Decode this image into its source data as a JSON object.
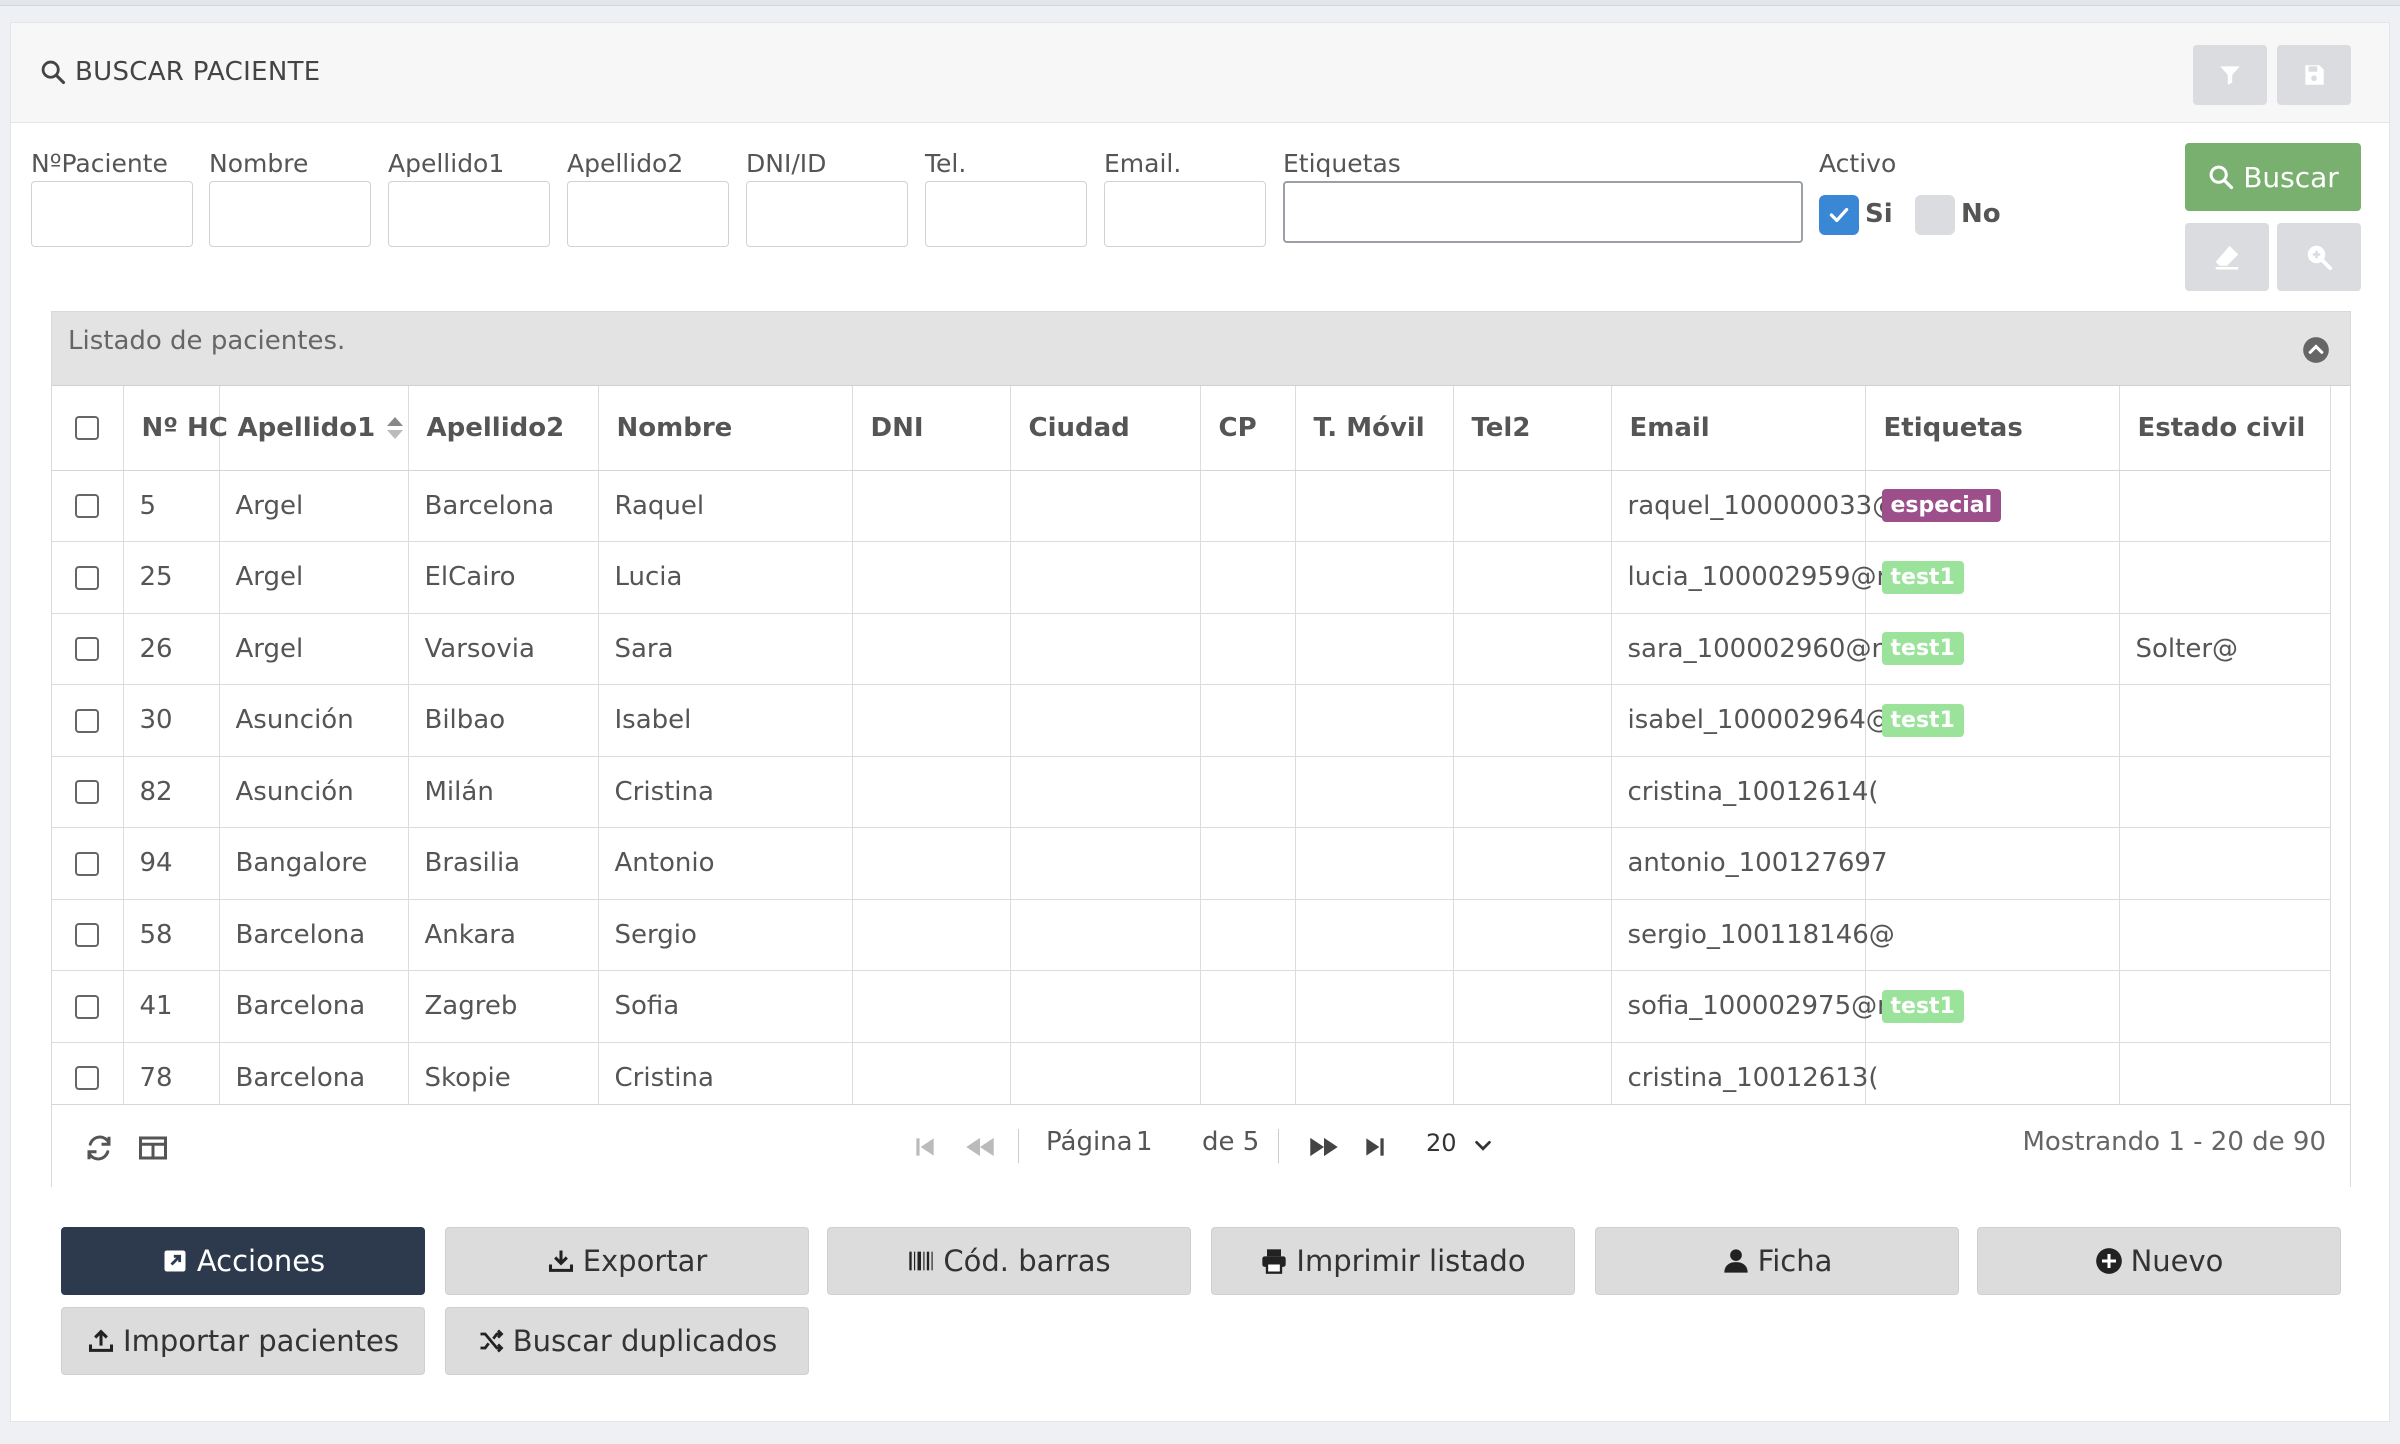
{
  "search_panel": {
    "title": "BUSCAR PACIENTE"
  },
  "filters": {
    "npaciente_label": "NºPaciente",
    "nombre_label": "Nombre",
    "apellido1_label": "Apellido1",
    "apellido2_label": "Apellido2",
    "dni_label": "DNI/ID",
    "tel_label": "Tel.",
    "email_label": "Email.",
    "etiquetas_label": "Etiquetas",
    "activo_label": "Activo",
    "si_label": "Si",
    "no_label": "No",
    "buscar_label": "Buscar"
  },
  "colors": {
    "accent_green": "#7ab06f",
    "checkbox_blue": "#3a87d6",
    "tag_especial": "#9c4f8a",
    "tag_test1": "#9be39a",
    "dark_button": "#2d3a4d"
  },
  "grid": {
    "caption": "Listado de pacientes.",
    "columns": [
      "Nº HC",
      "Apellido1",
      "Apellido2",
      "Nombre",
      "DNI",
      "Ciudad",
      "CP",
      "T. Móvil",
      "Tel2",
      "Email",
      "Etiquetas",
      "Estado civil"
    ],
    "rows": [
      {
        "hc": "5",
        "ap1": "Argel",
        "ap2": "Barcelona",
        "nombre": "Raquel",
        "email": "raquel_100000033@",
        "tag": "especial",
        "civil": ""
      },
      {
        "hc": "25",
        "ap1": "Argel",
        "ap2": "ElCairo",
        "nombre": "Lucia",
        "email": "lucia_100002959@n",
        "tag": "test1",
        "civil": ""
      },
      {
        "hc": "26",
        "ap1": "Argel",
        "ap2": "Varsovia",
        "nombre": "Sara",
        "email": "sara_100002960@n",
        "tag": "test1",
        "civil": "Solter@"
      },
      {
        "hc": "30",
        "ap1": "Asunción",
        "ap2": "Bilbao",
        "nombre": "Isabel",
        "email": "isabel_100002964@",
        "tag": "test1",
        "civil": ""
      },
      {
        "hc": "82",
        "ap1": "Asunción",
        "ap2": "Milán",
        "nombre": "Cristina",
        "email": "cristina_10012614(",
        "tag": "",
        "civil": ""
      },
      {
        "hc": "94",
        "ap1": "Bangalore",
        "ap2": "Brasilia",
        "nombre": "Antonio",
        "email": "antonio_100127697",
        "tag": "",
        "civil": ""
      },
      {
        "hc": "58",
        "ap1": "Barcelona",
        "ap2": "Ankara",
        "nombre": "Sergio",
        "email": "sergio_100118146@",
        "tag": "",
        "civil": ""
      },
      {
        "hc": "41",
        "ap1": "Barcelona",
        "ap2": "Zagreb",
        "nombre": "Sofia",
        "email": "sofia_100002975@n",
        "tag": "test1",
        "civil": ""
      },
      {
        "hc": "78",
        "ap1": "Barcelona",
        "ap2": "Skopie",
        "nombre": "Cristina",
        "email": "cristina_10012613(",
        "tag": "",
        "civil": ""
      }
    ]
  },
  "pager": {
    "pagina_label": "Página",
    "current_page": "1",
    "de_label": "de 5",
    "page_size": "20",
    "showing": "Mostrando 1 - 20 de 90"
  },
  "actions": {
    "acciones": "Acciones",
    "exportar": "Exportar",
    "cod_barras": "Cód. barras",
    "imprimir": "Imprimir listado",
    "ficha": "Ficha",
    "nuevo": "Nuevo",
    "importar": "Importar pacientes",
    "duplicados": "Buscar duplicados"
  }
}
